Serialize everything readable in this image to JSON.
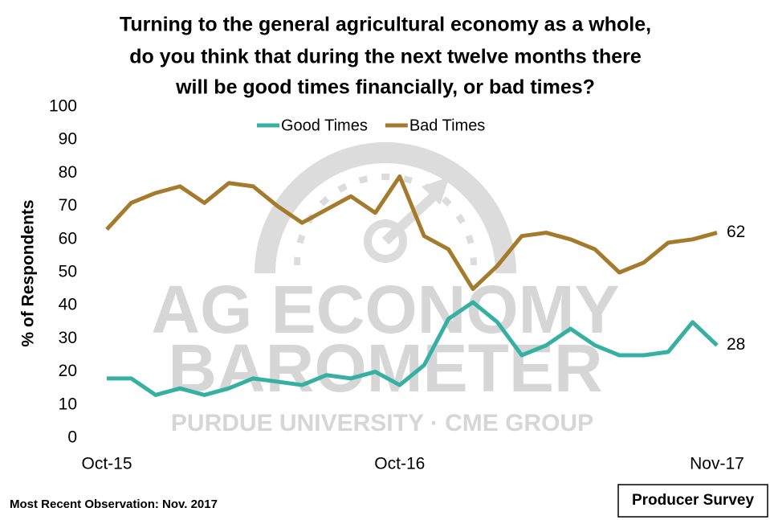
{
  "chart_data": {
    "type": "line",
    "title": [
      "Turning to the general agricultural economy as a whole,",
      "do you think that during the next twelve months there",
      "will be good times financially, or bad times?"
    ],
    "y_label": "% of Respondents",
    "categories": [
      "Oct-15",
      null,
      null,
      null,
      null,
      null,
      null,
      null,
      null,
      null,
      null,
      null,
      "Oct-16",
      null,
      null,
      null,
      null,
      null,
      null,
      null,
      null,
      null,
      null,
      null,
      null,
      "Nov-17"
    ],
    "series": [
      {
        "name": "Good Times",
        "color": "#36b0a2",
        "values": [
          18,
          18,
          13,
          15,
          13,
          15,
          18,
          17,
          16,
          19,
          18,
          20,
          16,
          22,
          36,
          41,
          35,
          25,
          28,
          33,
          28,
          25,
          25,
          26,
          35,
          28
        ]
      },
      {
        "name": "Bad Times",
        "color": "#a47b2c",
        "values": [
          63,
          71,
          74,
          76,
          71,
          77,
          76,
          70,
          65,
          69,
          73,
          68,
          79,
          61,
          57,
          45,
          52,
          61,
          62,
          60,
          57,
          50,
          53,
          59,
          60,
          62
        ]
      }
    ],
    "ylim": [
      0,
      100
    ],
    "yticks": [
      0,
      10,
      20,
      30,
      40,
      50,
      60,
      70,
      80,
      90,
      100
    ],
    "grid": false,
    "legend": "top",
    "watermark": [
      "AG ECONOMY",
      "BAROMETER",
      "PURDUE UNIVERSITY · CME GROUP"
    ],
    "footnote": "Most Recent Observation: Nov. 2017",
    "badge": "Producer Survey"
  }
}
